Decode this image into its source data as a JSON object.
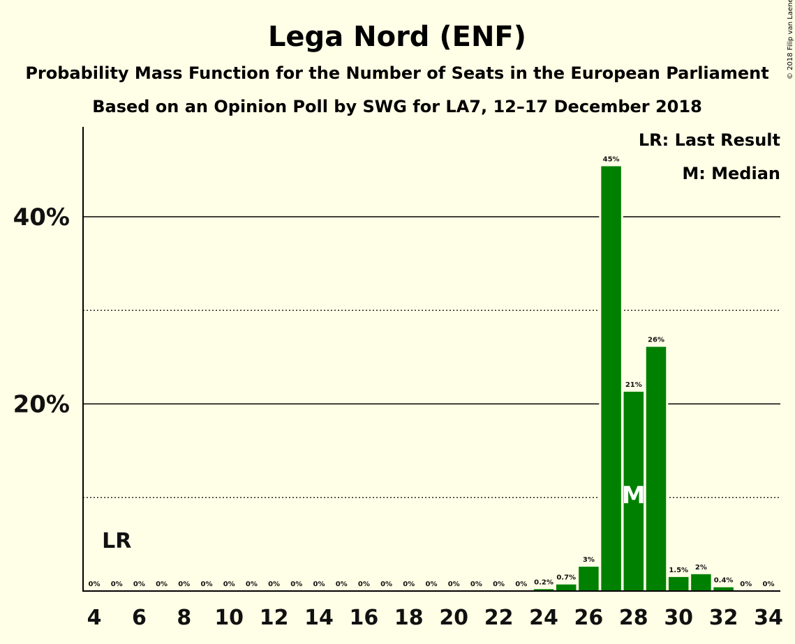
{
  "chart_data": {
    "type": "bar",
    "title": "Lega Nord (ENF)",
    "subtitle": "Probability Mass Function for the Number of Seats in the European Parliament",
    "subtitle2": "Based on an Opinion Poll by SWG for LA7, 12–17 December 2018",
    "copyright": "© 2018 Filip van Laenen",
    "legend": {
      "placement": "top-right",
      "lr": "LR: Last Result",
      "median": "M: Median"
    },
    "markers": {
      "lr_label": "LR",
      "lr_seat": 5,
      "median_label": "M",
      "median_seat": 28
    },
    "x": [
      4,
      5,
      6,
      7,
      8,
      9,
      10,
      11,
      12,
      13,
      14,
      15,
      16,
      17,
      18,
      19,
      20,
      21,
      22,
      23,
      24,
      25,
      26,
      27,
      28,
      29,
      30,
      31,
      32,
      33,
      34
    ],
    "values": [
      0,
      0,
      0,
      0,
      0,
      0,
      0,
      0,
      0,
      0,
      0,
      0,
      0,
      0,
      0,
      0,
      0,
      0,
      0,
      0,
      0.2,
      0.7,
      2.6,
      45.4,
      21.3,
      26.1,
      1.5,
      1.8,
      0.4,
      0,
      0
    ],
    "bar_labels": [
      "0%",
      "0%",
      "0%",
      "0%",
      "0%",
      "0%",
      "0%",
      "0%",
      "0%",
      "0%",
      "0%",
      "0%",
      "0%",
      "0%",
      "0%",
      "0%",
      "0%",
      "0%",
      "0%",
      "0%",
      "0.2%",
      "0.7%",
      "3%",
      "45%",
      "21%",
      "26%",
      "1.5%",
      "2%",
      "0.4%",
      "0%",
      "0%"
    ],
    "x_tick_labels": [
      "4",
      "6",
      "8",
      "10",
      "12",
      "14",
      "16",
      "18",
      "20",
      "22",
      "24",
      "26",
      "28",
      "30",
      "32",
      "34"
    ],
    "y_ticks": [
      20,
      40
    ],
    "y_tick_labels": [
      "20%",
      "40%"
    ],
    "y_minor_ticks": [
      10,
      30
    ],
    "ylim": [
      0,
      49.5
    ],
    "xlim": [
      4,
      34
    ],
    "grid": true,
    "colors": {
      "bar": "#008000",
      "background": "#FFFEE6",
      "text": "#111111",
      "median_text": "#FFFFFF"
    }
  }
}
